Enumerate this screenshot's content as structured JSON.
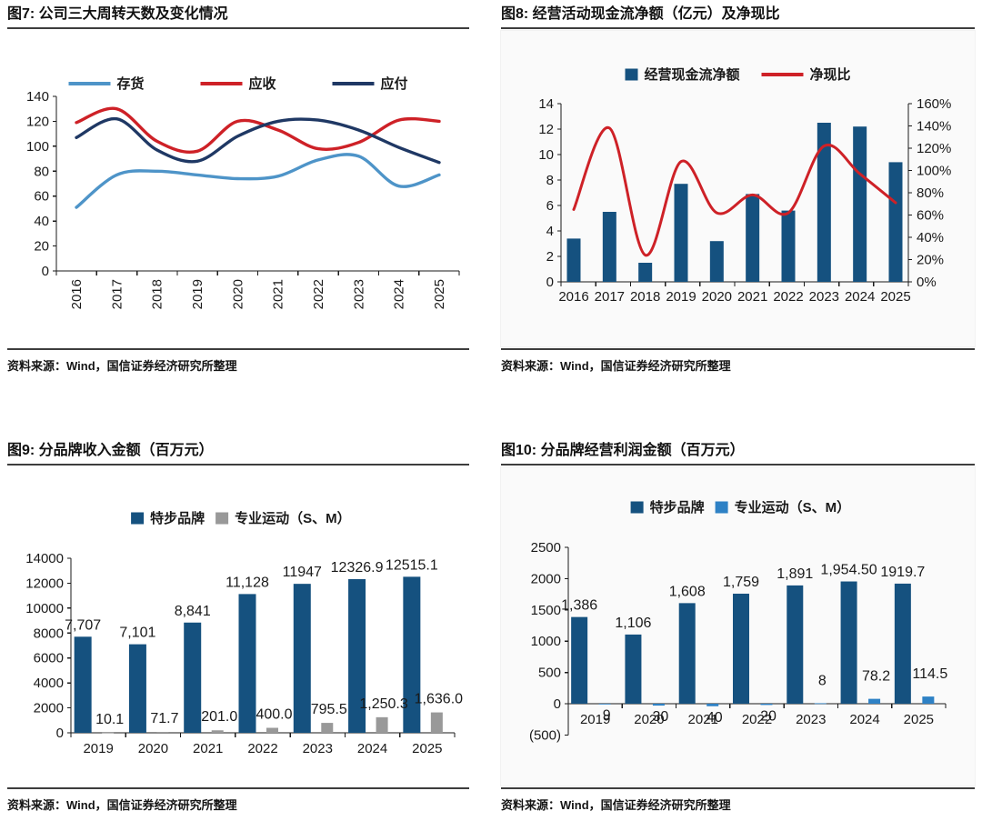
{
  "source_note": "资料来源：Wind，国信证券经济研究所整理",
  "colors": {
    "axis": "#1a1a1a",
    "title_rule": "#3d3d3d",
    "inventory_blue": "#4E94C8",
    "receivable_red": "#CE2127",
    "payable_navy": "#1F3864",
    "bar_dark_blue": "#15517F",
    "bar_gray": "#999999",
    "bar_light_blue": "#2E81C5",
    "negative_tick_red": "#FF0000"
  },
  "chart_data": [
    {
      "id": "fig7",
      "type": "line",
      "title": "图7: 公司三大周转天数及变化情况",
      "categories": [
        "2016",
        "2017",
        "2018",
        "2019",
        "2020",
        "2021",
        "2022",
        "2023",
        "2024",
        "2025"
      ],
      "series": [
        {
          "name": "存货",
          "color": "#4E94C8",
          "values": [
            51,
            77,
            80,
            77,
            74,
            76,
            89,
            92,
            68,
            77
          ]
        },
        {
          "name": "应收",
          "color": "#CE2127",
          "values": [
            119,
            130,
            104,
            96,
            120,
            113,
            98,
            103,
            121,
            120
          ]
        },
        {
          "name": "应付",
          "color": "#1F3864",
          "values": [
            107,
            122,
            97,
            88,
            108,
            120,
            121,
            113,
            99,
            87
          ]
        }
      ],
      "ylim": [
        0,
        140
      ],
      "ystep": 20,
      "ytick_labels": [
        "0",
        "20",
        "40",
        "60",
        "80",
        "100",
        "120",
        "140"
      ],
      "x_labels_rotated": true,
      "legend_position": "top",
      "grid": false
    },
    {
      "id": "fig8",
      "type": "bar-line",
      "title": "图8: 经营活动现金流净额（亿元）及净现比",
      "categories": [
        "2016",
        "2017",
        "2018",
        "2019",
        "2020",
        "2021",
        "2022",
        "2023",
        "2024",
        "2025"
      ],
      "bar_series": {
        "name": "经营现金流净额",
        "color": "#15517F",
        "values": [
          3.4,
          5.5,
          1.5,
          7.7,
          3.2,
          6.9,
          5.6,
          12.5,
          12.2,
          9.4
        ]
      },
      "line_series": {
        "name": "净现比",
        "color": "#CE2127",
        "axis": "right",
        "unit": "%",
        "values": [
          65,
          138,
          24,
          108,
          62,
          78,
          62,
          122,
          97,
          71
        ]
      },
      "ylim_left": [
        0,
        14
      ],
      "ystep_left": 2,
      "ytick_labels_left": [
        "0",
        "2",
        "4",
        "6",
        "8",
        "10",
        "12",
        "14"
      ],
      "ylim_right": [
        0,
        160
      ],
      "ystep_right": 20,
      "ytick_labels_right": [
        "0%",
        "20%",
        "40%",
        "60%",
        "80%",
        "100%",
        "120%",
        "140%",
        "160%"
      ],
      "legend_position": "top",
      "grid": false
    },
    {
      "id": "fig9",
      "type": "grouped-bar",
      "title": "图9: 分品牌收入金额（百万元）",
      "categories": [
        "2019",
        "2020",
        "2021",
        "2022",
        "2023",
        "2024",
        "2025"
      ],
      "series": [
        {
          "name": "特步品牌",
          "color": "#15517F",
          "values": [
            7707,
            7101,
            8841,
            11128,
            11947,
            12326.9,
            12515.1
          ],
          "labels": [
            "7,707",
            "7,101",
            "8,841",
            "11,128",
            "11947",
            "12326.9",
            "12515.1"
          ]
        },
        {
          "name": "专业运动（S、M）",
          "color": "#999999",
          "values": [
            10.1,
            71.7,
            201.0,
            400.0,
            795.5,
            1250.3,
            1636.0
          ],
          "labels": [
            "10.1",
            "71.7",
            "201.0",
            "400.0",
            "795.5",
            "1,250.3",
            "1,636.0"
          ]
        }
      ],
      "ylim": [
        0,
        14000
      ],
      "ystep": 2000,
      "ytick_labels": [
        "0",
        "2000",
        "4000",
        "6000",
        "8000",
        "10000",
        "12000",
        "14000"
      ],
      "legend_position": "top",
      "grid": false
    },
    {
      "id": "fig10",
      "type": "grouped-bar",
      "title": "图10: 分品牌经营利润金额（百万元）",
      "categories": [
        "2019",
        "2020",
        "2021",
        "2022",
        "2023",
        "2024",
        "2025"
      ],
      "series": [
        {
          "name": "特步品牌",
          "color": "#15517F",
          "values": [
            1386,
            1106,
            1608,
            1759,
            1891,
            1954.5,
            1919.7
          ],
          "labels": [
            "1,386",
            "1,106",
            "1,608",
            "1,759",
            "1,891",
            "1,954.50",
            "1919.7"
          ]
        },
        {
          "name": "专业运动（S、M）",
          "color": "#2E81C5",
          "values": [
            -9,
            -30,
            -40,
            -20,
            8,
            78.2,
            114.5
          ],
          "labels": [
            "9",
            "30",
            "40",
            "20",
            "8",
            "78.2",
            "114.5"
          ]
        }
      ],
      "ylim": [
        -500,
        2500
      ],
      "ystep": 500,
      "ytick_labels": [
        "(500)",
        "0",
        "500",
        "1000",
        "1500",
        "2000",
        "2500"
      ],
      "ytick_colors": [
        "#FF0000",
        "#1a1a1a",
        "#1a1a1a",
        "#1a1a1a",
        "#1a1a1a",
        "#1a1a1a",
        "#1a1a1a"
      ],
      "legend_position": "top",
      "grid": false
    }
  ]
}
